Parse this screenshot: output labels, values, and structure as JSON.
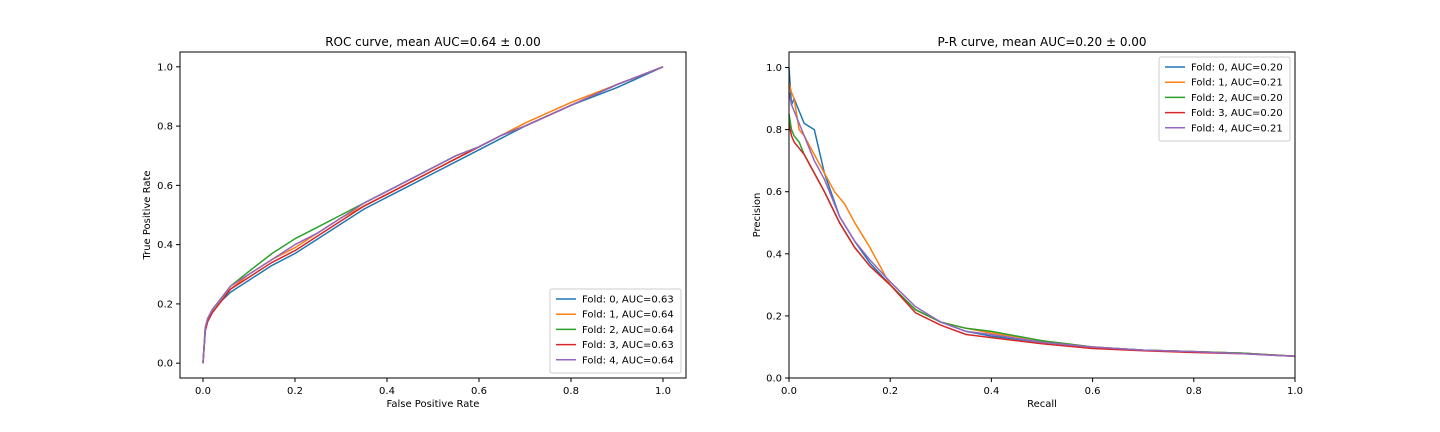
{
  "chart_data": [
    {
      "type": "line",
      "title": "ROC curve, mean AUC=0.64 ± 0.00",
      "xlabel": "False Positive Rate",
      "ylabel": "True Positive Rate",
      "xlim": [
        -0.05,
        1.05
      ],
      "ylim": [
        -0.05,
        1.05
      ],
      "xticks": [
        0.0,
        0.2,
        0.4,
        0.6,
        0.8,
        1.0
      ],
      "yticks": [
        0.0,
        0.2,
        0.4,
        0.6,
        0.8,
        1.0
      ],
      "tick_labels_x": [
        "0.0",
        "0.2",
        "0.4",
        "0.6",
        "0.8",
        "1.0"
      ],
      "tick_labels_y": [
        "0.0",
        "0.2",
        "0.4",
        "0.6",
        "0.8",
        "1.0"
      ],
      "grid": false,
      "legend_position": "lower-right",
      "series": [
        {
          "name": "Fold: 0, AUC=0.63",
          "color": "#1f77b4",
          "x": [
            0,
            0.005,
            0.01,
            0.02,
            0.04,
            0.06,
            0.1,
            0.15,
            0.2,
            0.25,
            0.3,
            0.35,
            0.4,
            0.45,
            0.5,
            0.55,
            0.6,
            0.65,
            0.7,
            0.8,
            0.9,
            1.0
          ],
          "y": [
            0,
            0.11,
            0.14,
            0.17,
            0.21,
            0.24,
            0.28,
            0.33,
            0.37,
            0.42,
            0.47,
            0.52,
            0.56,
            0.6,
            0.64,
            0.68,
            0.72,
            0.76,
            0.8,
            0.87,
            0.93,
            1.0
          ]
        },
        {
          "name": "Fold: 1, AUC=0.64",
          "color": "#ff7f0e",
          "x": [
            0,
            0.005,
            0.01,
            0.02,
            0.04,
            0.06,
            0.1,
            0.15,
            0.2,
            0.25,
            0.3,
            0.35,
            0.4,
            0.45,
            0.5,
            0.55,
            0.6,
            0.65,
            0.7,
            0.8,
            0.9,
            1.0
          ],
          "y": [
            0,
            0.12,
            0.15,
            0.18,
            0.22,
            0.25,
            0.3,
            0.35,
            0.39,
            0.44,
            0.49,
            0.53,
            0.57,
            0.61,
            0.65,
            0.69,
            0.73,
            0.77,
            0.81,
            0.88,
            0.94,
            1.0
          ]
        },
        {
          "name": "Fold: 2, AUC=0.64",
          "color": "#2ca02c",
          "x": [
            0,
            0.005,
            0.01,
            0.02,
            0.04,
            0.06,
            0.1,
            0.15,
            0.2,
            0.25,
            0.3,
            0.35,
            0.4,
            0.45,
            0.5,
            0.55,
            0.6,
            0.65,
            0.7,
            0.8,
            0.9,
            1.0
          ],
          "y": [
            0,
            0.12,
            0.15,
            0.18,
            0.22,
            0.26,
            0.31,
            0.37,
            0.42,
            0.46,
            0.5,
            0.54,
            0.58,
            0.62,
            0.66,
            0.7,
            0.73,
            0.77,
            0.8,
            0.87,
            0.94,
            1.0
          ]
        },
        {
          "name": "Fold: 3, AUC=0.63",
          "color": "#d62728",
          "x": [
            0,
            0.005,
            0.01,
            0.02,
            0.04,
            0.06,
            0.1,
            0.15,
            0.2,
            0.25,
            0.3,
            0.35,
            0.4,
            0.45,
            0.5,
            0.55,
            0.6,
            0.65,
            0.7,
            0.8,
            0.9,
            1.0
          ],
          "y": [
            0,
            0.11,
            0.14,
            0.17,
            0.21,
            0.25,
            0.29,
            0.34,
            0.38,
            0.43,
            0.48,
            0.53,
            0.57,
            0.61,
            0.65,
            0.69,
            0.73,
            0.77,
            0.8,
            0.87,
            0.94,
            1.0
          ]
        },
        {
          "name": "Fold: 4, AUC=0.64",
          "color": "#9467bd",
          "x": [
            0,
            0.005,
            0.01,
            0.02,
            0.04,
            0.06,
            0.1,
            0.15,
            0.2,
            0.25,
            0.3,
            0.35,
            0.4,
            0.45,
            0.5,
            0.55,
            0.6,
            0.65,
            0.7,
            0.8,
            0.9,
            1.0
          ],
          "y": [
            0,
            0.12,
            0.15,
            0.18,
            0.22,
            0.26,
            0.3,
            0.35,
            0.4,
            0.44,
            0.49,
            0.54,
            0.58,
            0.62,
            0.66,
            0.7,
            0.73,
            0.77,
            0.8,
            0.87,
            0.94,
            1.0
          ]
        }
      ]
    },
    {
      "type": "line",
      "title": "P-R curve, mean AUC=0.20 ± 0.00",
      "xlabel": "Recall",
      "ylabel": "Precision",
      "xlim": [
        0.0,
        1.0
      ],
      "ylim": [
        0.0,
        1.05
      ],
      "xticks": [
        0.0,
        0.2,
        0.4,
        0.6,
        0.8,
        1.0
      ],
      "yticks": [
        0.0,
        0.2,
        0.4,
        0.6,
        0.8,
        1.0
      ],
      "tick_labels_x": [
        "0.0",
        "0.2",
        "0.4",
        "0.6",
        "0.8",
        "1.0"
      ],
      "tick_labels_y": [
        "0.0",
        "0.2",
        "0.4",
        "0.6",
        "0.8",
        "1.0"
      ],
      "grid": false,
      "legend_position": "upper-right",
      "series": [
        {
          "name": "Fold: 0, AUC=0.20",
          "color": "#1f77b4",
          "x": [
            0.0,
            0.005,
            0.01,
            0.02,
            0.03,
            0.05,
            0.07,
            0.1,
            0.13,
            0.16,
            0.2,
            0.25,
            0.3,
            0.35,
            0.4,
            0.5,
            0.6,
            0.7,
            0.8,
            0.9,
            1.0
          ],
          "y": [
            1.0,
            0.88,
            0.9,
            0.86,
            0.82,
            0.8,
            0.66,
            0.52,
            0.44,
            0.37,
            0.3,
            0.22,
            0.18,
            0.15,
            0.135,
            0.115,
            0.1,
            0.09,
            0.085,
            0.08,
            0.07
          ]
        },
        {
          "name": "Fold: 1, AUC=0.21",
          "color": "#ff7f0e",
          "x": [
            0.0,
            0.005,
            0.01,
            0.02,
            0.03,
            0.05,
            0.07,
            0.09,
            0.11,
            0.13,
            0.16,
            0.2,
            0.25,
            0.3,
            0.35,
            0.4,
            0.5,
            0.6,
            0.7,
            0.8,
            0.9,
            1.0
          ],
          "y": [
            0.95,
            0.92,
            0.9,
            0.8,
            0.78,
            0.72,
            0.66,
            0.6,
            0.56,
            0.5,
            0.42,
            0.3,
            0.22,
            0.18,
            0.16,
            0.145,
            0.12,
            0.1,
            0.09,
            0.085,
            0.08,
            0.07
          ]
        },
        {
          "name": "Fold: 2, AUC=0.20",
          "color": "#2ca02c",
          "x": [
            0.0,
            0.005,
            0.01,
            0.02,
            0.03,
            0.05,
            0.07,
            0.1,
            0.13,
            0.16,
            0.2,
            0.25,
            0.3,
            0.35,
            0.4,
            0.5,
            0.6,
            0.7,
            0.8,
            0.9,
            1.0
          ],
          "y": [
            0.85,
            0.8,
            0.78,
            0.76,
            0.72,
            0.66,
            0.6,
            0.5,
            0.42,
            0.36,
            0.3,
            0.22,
            0.18,
            0.16,
            0.15,
            0.12,
            0.1,
            0.09,
            0.085,
            0.08,
            0.07
          ]
        },
        {
          "name": "Fold: 3, AUC=0.20",
          "color": "#d62728",
          "x": [
            0.0,
            0.005,
            0.01,
            0.02,
            0.03,
            0.05,
            0.07,
            0.1,
            0.13,
            0.16,
            0.2,
            0.25,
            0.3,
            0.35,
            0.4,
            0.5,
            0.6,
            0.7,
            0.8,
            0.9,
            1.0
          ],
          "y": [
            0.82,
            0.78,
            0.76,
            0.74,
            0.72,
            0.66,
            0.6,
            0.5,
            0.42,
            0.36,
            0.3,
            0.21,
            0.17,
            0.14,
            0.13,
            0.11,
            0.095,
            0.088,
            0.082,
            0.078,
            0.07
          ]
        },
        {
          "name": "Fold: 4, AUC=0.21",
          "color": "#9467bd",
          "x": [
            0.0,
            0.005,
            0.01,
            0.02,
            0.03,
            0.05,
            0.07,
            0.1,
            0.13,
            0.16,
            0.2,
            0.25,
            0.3,
            0.35,
            0.4,
            0.5,
            0.6,
            0.7,
            0.8,
            0.9,
            1.0
          ],
          "y": [
            0.92,
            0.88,
            0.86,
            0.82,
            0.78,
            0.7,
            0.64,
            0.52,
            0.44,
            0.38,
            0.31,
            0.23,
            0.18,
            0.15,
            0.14,
            0.115,
            0.1,
            0.09,
            0.085,
            0.078,
            0.07
          ]
        }
      ]
    }
  ]
}
